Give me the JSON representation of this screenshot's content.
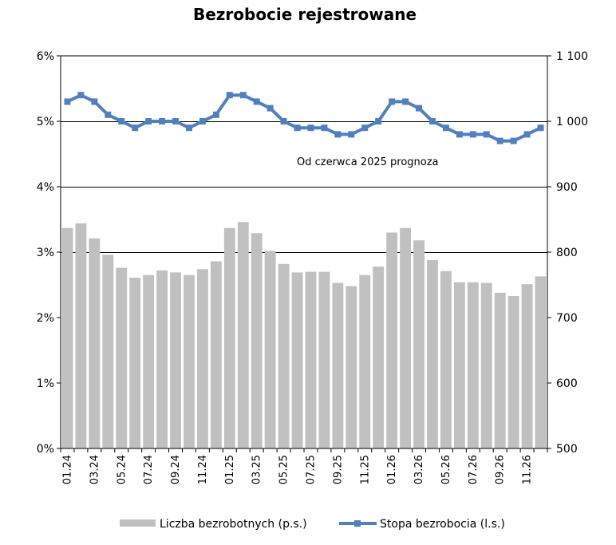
{
  "chart_data": {
    "type": "bar+line",
    "title": "Bezrobocie rejestrowane",
    "annotation": "Od czerwca 2025 prognoza",
    "x": [
      "01.24",
      "02.24",
      "03.24",
      "04.24",
      "05.24",
      "06.24",
      "07.24",
      "08.24",
      "09.24",
      "10.24",
      "11.24",
      "12.24",
      "01.25",
      "02.25",
      "03.25",
      "04.25",
      "05.25",
      "06.25",
      "07.25",
      "08.25",
      "09.25",
      "10.25",
      "11.25",
      "12.25",
      "01.26",
      "02.26",
      "03.26",
      "04.26",
      "05.26",
      "06.26",
      "07.26",
      "08.26",
      "09.26",
      "10.26",
      "11.26",
      "12.26"
    ],
    "x_tick_labels": [
      "01.24",
      "03.24",
      "05.24",
      "07.24",
      "09.24",
      "11.24",
      "01.25",
      "03.25",
      "05.25",
      "07.25",
      "09.25",
      "11.25",
      "01.26",
      "03.26",
      "05.26",
      "07.26",
      "09.26",
      "11.26"
    ],
    "left_axis": {
      "ticks": [
        "0%",
        "1%",
        "2%",
        "3%",
        "4%",
        "5%",
        "6%"
      ],
      "min": 0,
      "max": 6
    },
    "right_axis": {
      "ticks": [
        "500",
        "600",
        "700",
        "800",
        "900",
        "1 000",
        "1 100"
      ],
      "min": 500,
      "max": 1100
    },
    "grid": {
      "horizontal_at_left_values": [
        3,
        4,
        5
      ]
    },
    "series": [
      {
        "name": "Liczba bezrobotnych (p.s.)",
        "type": "bar",
        "axis": "right",
        "color": "#c0c0c0",
        "values": [
          837,
          844,
          821,
          796,
          776,
          761,
          765,
          772,
          769,
          765,
          774,
          786,
          837,
          846,
          829,
          802,
          782,
          769,
          770,
          770,
          753,
          748,
          765,
          778,
          830,
          837,
          818,
          788,
          771,
          754,
          754,
          753,
          738,
          733,
          751,
          763
        ]
      },
      {
        "name": "Stopa bezrobocia (l.s.)",
        "type": "line",
        "axis": "left",
        "color": "#4f81bd",
        "values": [
          5.3,
          5.4,
          5.3,
          5.1,
          5.0,
          4.9,
          5.0,
          5.0,
          5.0,
          4.9,
          5.0,
          5.1,
          5.4,
          5.4,
          5.3,
          5.2,
          5.0,
          4.9,
          4.9,
          4.9,
          4.8,
          4.8,
          4.9,
          5.0,
          5.3,
          5.3,
          5.2,
          5.0,
          4.9,
          4.8,
          4.8,
          4.8,
          4.7,
          4.7,
          4.8,
          4.9
        ]
      }
    ],
    "legend_placement": "bottom"
  }
}
